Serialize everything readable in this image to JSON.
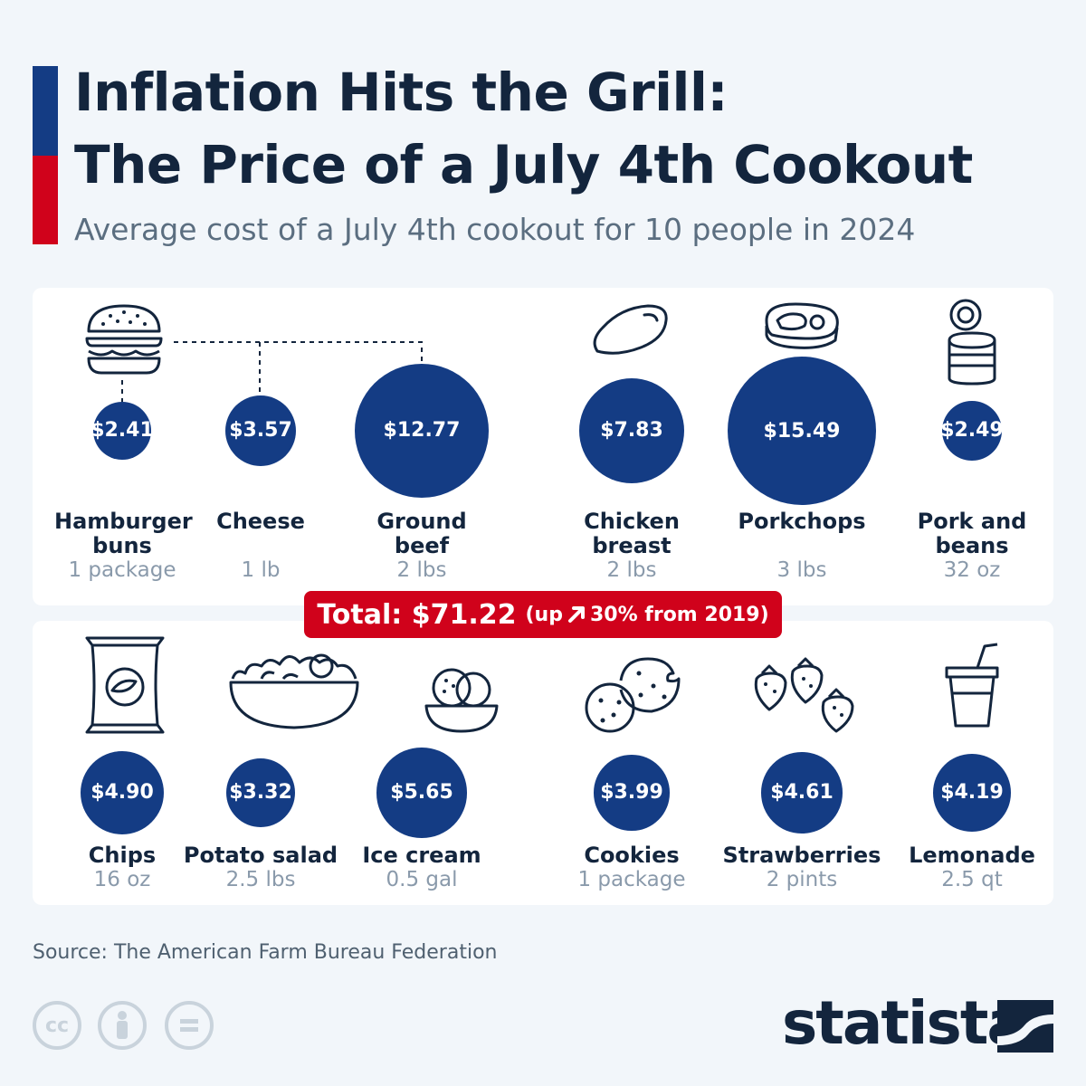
{
  "title_line1": "Inflation Hits the Grill:",
  "title_line2": "The Price of a July 4th Cookout",
  "subtitle": "Average cost of a July 4th cookout for 10 people in 2024",
  "colors": {
    "bubble": "#143c84",
    "accent_blue": "#143c84",
    "accent_red": "#d0021b",
    "total_bg": "#d0021b"
  },
  "chart_data": {
    "type": "bubble",
    "title": "Inflation Hits the Grill: The Price of a July 4th Cookout",
    "subtitle": "Average cost of a July 4th cookout for 10 people in 2024",
    "currency": "$",
    "items": [
      {
        "name": "Hamburger buns",
        "quantity": "1 package",
        "value": 2.41,
        "label": "$2.41",
        "icon": "burger-icon"
      },
      {
        "name": "Cheese",
        "quantity": "1 lb",
        "value": 3.57,
        "label": "$3.57",
        "icon": "burger-icon"
      },
      {
        "name": "Ground beef",
        "quantity": "2 lbs",
        "value": 12.77,
        "label": "$12.77",
        "icon": "burger-icon"
      },
      {
        "name": "Chicken breast",
        "quantity": "2 lbs",
        "value": 7.83,
        "label": "$7.83",
        "icon": "chicken-breast-icon"
      },
      {
        "name": "Porkchops",
        "quantity": "3 lbs",
        "value": 15.49,
        "label": "$15.49",
        "icon": "steak-icon"
      },
      {
        "name": "Pork and beans",
        "quantity": "32 oz",
        "value": 2.49,
        "label": "$2.49",
        "icon": "can-icon"
      },
      {
        "name": "Chips",
        "quantity": "16 oz",
        "value": 4.9,
        "label": "$4.90",
        "icon": "chips-bag-icon"
      },
      {
        "name": "Potato salad",
        "quantity": "2.5 lbs",
        "value": 3.32,
        "label": "$3.32",
        "icon": "salad-bowl-icon"
      },
      {
        "name": "Ice cream",
        "quantity": "0.5 gal",
        "value": 5.65,
        "label": "$5.65",
        "icon": "ice-cream-bowl-icon"
      },
      {
        "name": "Cookies",
        "quantity": "1 package",
        "value": 3.99,
        "label": "$3.99",
        "icon": "cookies-icon"
      },
      {
        "name": "Strawberries",
        "quantity": "2 pints",
        "value": 4.61,
        "label": "$4.61",
        "icon": "strawberries-icon"
      },
      {
        "name": "Lemonade",
        "quantity": "2.5 qt",
        "value": 4.19,
        "label": "$4.19",
        "icon": "cup-icon"
      }
    ],
    "total": {
      "value": 71.22,
      "change_percent": 30,
      "since": 2019
    }
  },
  "total_main": "Total: $71.22",
  "total_up": "(up",
  "total_rest": "30% from 2019)",
  "source": "Source: The American Farm Bureau Federation",
  "license_icons": [
    "cc-icon",
    "attribution-icon",
    "no-derivatives-icon"
  ],
  "brand": "statista"
}
